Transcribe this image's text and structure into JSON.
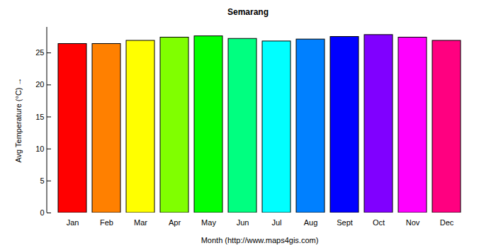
{
  "chart_data": {
    "type": "bar",
    "title": "Semarang",
    "x_label": "Month (http://www.maps4gis.com)",
    "y_label": "Avg Temperature (°C)",
    "categories": [
      "Jan",
      "Feb",
      "Mar",
      "Apr",
      "May",
      "Jun",
      "Jul",
      "Aug",
      "Sept",
      "Oct",
      "Nov",
      "Dec"
    ],
    "values": [
      26.4,
      26.4,
      26.9,
      27.4,
      27.6,
      27.2,
      26.8,
      27.1,
      27.5,
      27.8,
      27.4,
      26.9
    ],
    "colors": [
      "#ff0000",
      "#ff8000",
      "#ffff00",
      "#80ff00",
      "#00ff00",
      "#00ff80",
      "#00ffff",
      "#0080ff",
      "#0000ff",
      "#8000ff",
      "#ff00ff",
      "#ff0080"
    ],
    "ylim": [
      0,
      29
    ],
    "yticks": [
      0,
      5,
      10,
      15,
      20,
      25
    ],
    "grid": false
  }
}
